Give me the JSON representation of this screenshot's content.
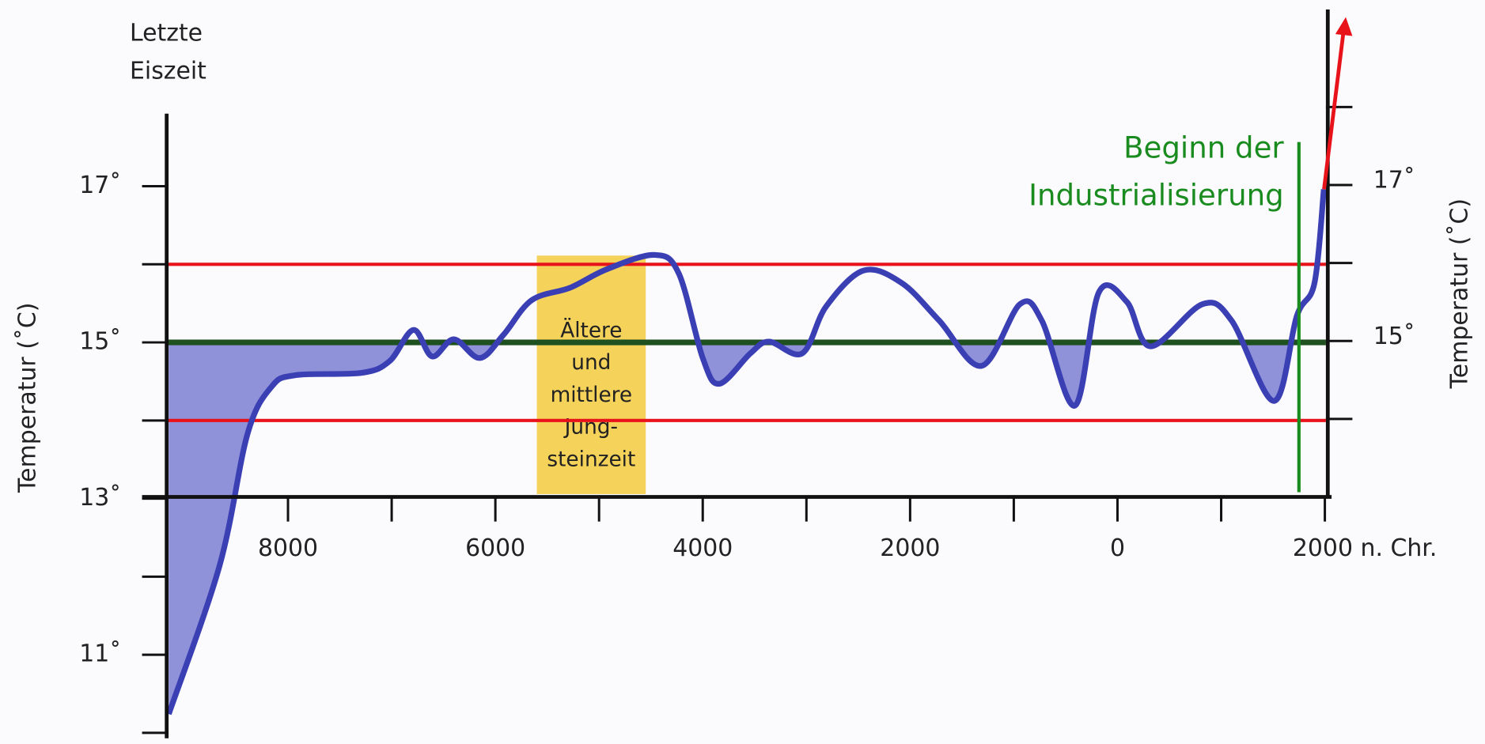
{
  "chart_data": {
    "type": "line",
    "title_lines": [
      "Letzte",
      "Eiszeit"
    ],
    "y_label": "Temperatur (˚C)",
    "y2_label": "Temperatur (˚C)",
    "x": [
      -9150,
      -8660,
      -8390,
      -8160,
      -7930,
      -7290,
      -7020,
      -6790,
      -6610,
      -6400,
      -6150,
      -5920,
      -5650,
      -5280,
      -4920,
      -4460,
      -4230,
      -4000,
      -3840,
      -3540,
      -3360,
      -3040,
      -2810,
      -2450,
      -2080,
      -1720,
      -1310,
      -940,
      -730,
      -410,
      -180,
      90,
      320,
      820,
      1100,
      1510,
      1730,
      1900,
      1990
    ],
    "values": [
      10.24,
      12.14,
      13.83,
      14.43,
      14.58,
      14.61,
      14.76,
      15.16,
      14.82,
      15.04,
      14.8,
      15.1,
      15.54,
      15.7,
      15.94,
      16.12,
      15.88,
      14.8,
      14.47,
      14.86,
      15.01,
      14.86,
      15.46,
      15.92,
      15.76,
      15.28,
      14.7,
      15.49,
      15.28,
      14.19,
      15.64,
      15.52,
      14.95,
      15.49,
      15.28,
      14.25,
      15.34,
      15.76,
      16.96
    ],
    "color": "#3b3fb4",
    "fill_color": "#8f92d8",
    "fill_below": 15,
    "xlim": [
      -9170,
      2010
    ],
    "xticks": [
      {
        "value": -8000,
        "label": "8000"
      },
      {
        "value": -6000,
        "label": "6000"
      },
      {
        "value": -4000,
        "label": "4000"
      },
      {
        "value": -2000,
        "label": "2000"
      },
      0,
      {
        "value": 2000,
        "label": "2000 n. Chr."
      }
    ],
    "xminor_ticks": [
      -7000,
      -5000,
      -3000,
      -1000,
      1000
    ],
    "ylim": [
      9.93,
      17.93
    ],
    "yticks": [
      {
        "value": 17,
        "label": "17˚"
      },
      {
        "value": 15,
        "label": "15˚"
      },
      {
        "value": 13,
        "label": "13˚"
      },
      {
        "value": 11,
        "label": "11˚"
      }
    ],
    "yminor_ticks": [
      16,
      14,
      12,
      10
    ],
    "y2lim": [
      13,
      19.25
    ],
    "y2ticks": [
      {
        "value": 17,
        "label": "17˚"
      },
      {
        "value": 15,
        "label": "15˚"
      }
    ],
    "y2minor_ticks": [
      18,
      16,
      14
    ],
    "hlines": [
      {
        "value": 16,
        "color": "#e8121b"
      },
      {
        "value": 14,
        "color": "#e8121b"
      },
      {
        "value": 15,
        "color": "#1f5020"
      }
    ],
    "vline": {
      "value": 1750,
      "color": "#1a8c1f",
      "label_lines": [
        "Beginn der",
        "Industrialisierung"
      ]
    },
    "band": {
      "x": [
        -5600,
        -4550
      ],
      "color": "#f5d25a",
      "text_lines": [
        "Ältere",
        "und",
        "mittlere",
        "Jung-",
        "steinzeit"
      ]
    }
  }
}
